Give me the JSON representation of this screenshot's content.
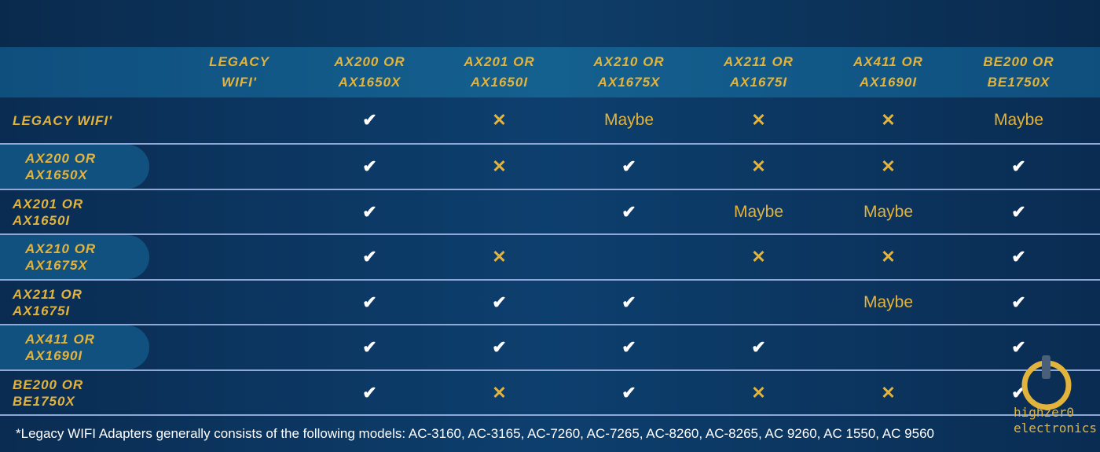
{
  "columns": [
    "LEGACY\nWIFI'",
    "AX200 OR\nAX1650X",
    "AX201 OR\nAX1650I",
    "AX210 OR\nAX1675X",
    "AX211 OR\nAX1675I",
    "AX411 OR\nAX1690I",
    "BE200 OR\nBE1750X"
  ],
  "rows": [
    {
      "label": "LEGACY WIFI'",
      "cells": [
        "",
        "check",
        "cross",
        "Maybe",
        "cross",
        "cross",
        "Maybe"
      ]
    },
    {
      "label": "AX200 OR\nAX1650X",
      "cells": [
        "",
        "check",
        "cross",
        "check",
        "cross",
        "cross",
        "check"
      ]
    },
    {
      "label": "AX201 OR\nAX1650I",
      "cells": [
        "",
        "check",
        "",
        "check",
        "Maybe",
        "Maybe",
        "check"
      ]
    },
    {
      "label": "AX210 OR\nAX1675X",
      "cells": [
        "",
        "check",
        "cross",
        "",
        "cross",
        "cross",
        "check"
      ]
    },
    {
      "label": "AX211 OR\nAX1675I",
      "cells": [
        "",
        "check",
        "check",
        "check",
        "",
        "Maybe",
        "check"
      ]
    },
    {
      "label": "AX411 OR\nAX1690I",
      "cells": [
        "",
        "check",
        "check",
        "check",
        "check",
        "",
        "check"
      ]
    },
    {
      "label": "BE200 OR\nBE1750X",
      "cells": [
        "",
        "check",
        "cross",
        "check",
        "cross",
        "cross",
        "check"
      ]
    }
  ],
  "footnote": "*Legacy WIFI Adapters generally consists of the following models: AC-3160, AC-3165, AC-7260, AC-7265, AC-8260, AC-8265, AC 9260, AC 1550, AC 9560",
  "logo": {
    "line1": "highzer0",
    "line2": "electronics"
  },
  "colors": {
    "gold": "#e3b43c",
    "header": "#14608f",
    "background": "#0d3f6e",
    "divider": "#8fa8d8"
  },
  "icons": {
    "check": "check-icon",
    "cross": "cross-icon"
  }
}
